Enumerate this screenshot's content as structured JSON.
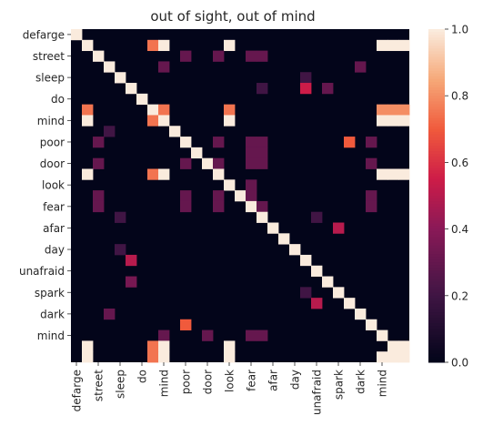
{
  "chart_data": {
    "type": "heatmap",
    "title": "out of sight, out of mind",
    "xlabel": "",
    "ylabel": "",
    "labels": [
      "defarge",
      "",
      "street",
      "",
      "sleep",
      "",
      "do",
      "",
      "mind",
      "",
      "poor",
      "",
      "door",
      "",
      "look",
      "",
      "fear",
      "",
      "afar",
      "",
      "day",
      "",
      "unafraid",
      "",
      "spark",
      "",
      "dark",
      "",
      "mind",
      "",
      ""
    ],
    "colorbar": {
      "min": 0.0,
      "max": 1.0,
      "ticks": [
        "0.0",
        "0.2",
        "0.4",
        "0.6",
        "0.8",
        "1.0"
      ]
    },
    "cells": [
      [
        0,
        0,
        1.0
      ],
      [
        1,
        1,
        1.0
      ],
      [
        1,
        7,
        0.75
      ],
      [
        1,
        8,
        1.0
      ],
      [
        1,
        14,
        1.0
      ],
      [
        1,
        28,
        1.0
      ],
      [
        1,
        29,
        1.0
      ],
      [
        1,
        30,
        1.0
      ],
      [
        2,
        2,
        1.0
      ],
      [
        2,
        10,
        0.3
      ],
      [
        2,
        13,
        0.3
      ],
      [
        2,
        16,
        0.3
      ],
      [
        2,
        17,
        0.3
      ],
      [
        3,
        3,
        1.0
      ],
      [
        3,
        8,
        0.3
      ],
      [
        3,
        26,
        0.3
      ],
      [
        4,
        4,
        1.0
      ],
      [
        4,
        21,
        0.2
      ],
      [
        5,
        5,
        1.0
      ],
      [
        5,
        17,
        0.2
      ],
      [
        5,
        21,
        0.55
      ],
      [
        5,
        23,
        0.3
      ],
      [
        6,
        6,
        1.0
      ],
      [
        7,
        1,
        0.75
      ],
      [
        7,
        7,
        1.0
      ],
      [
        7,
        8,
        0.75
      ],
      [
        7,
        14,
        0.75
      ],
      [
        7,
        28,
        0.8
      ],
      [
        7,
        29,
        0.8
      ],
      [
        7,
        30,
        0.8
      ],
      [
        8,
        1,
        1.0
      ],
      [
        8,
        7,
        0.75
      ],
      [
        8,
        8,
        1.0
      ],
      [
        8,
        14,
        1.0
      ],
      [
        8,
        28,
        1.0
      ],
      [
        8,
        29,
        1.0
      ],
      [
        8,
        30,
        1.0
      ],
      [
        9,
        9,
        1.0
      ],
      [
        9,
        3,
        0.2
      ],
      [
        10,
        10,
        1.0
      ],
      [
        10,
        2,
        0.3
      ],
      [
        10,
        13,
        0.3
      ],
      [
        10,
        16,
        0.3
      ],
      [
        10,
        17,
        0.3
      ],
      [
        10,
        25,
        0.7
      ],
      [
        10,
        27,
        0.3
      ],
      [
        11,
        11,
        1.0
      ],
      [
        11,
        16,
        0.3
      ],
      [
        11,
        17,
        0.3
      ],
      [
        12,
        12,
        1.0
      ],
      [
        12,
        2,
        0.3
      ],
      [
        12,
        10,
        0.3
      ],
      [
        12,
        13,
        0.3
      ],
      [
        12,
        16,
        0.3
      ],
      [
        12,
        17,
        0.3
      ],
      [
        12,
        27,
        0.3
      ],
      [
        13,
        1,
        1.0
      ],
      [
        13,
        7,
        0.75
      ],
      [
        13,
        8,
        1.0
      ],
      [
        13,
        13,
        1.0
      ],
      [
        13,
        28,
        1.0
      ],
      [
        13,
        29,
        1.0
      ],
      [
        13,
        30,
        1.0
      ],
      [
        14,
        14,
        1.0
      ],
      [
        14,
        16,
        0.3
      ],
      [
        15,
        15,
        1.0
      ],
      [
        15,
        2,
        0.3
      ],
      [
        15,
        10,
        0.3
      ],
      [
        15,
        13,
        0.3
      ],
      [
        15,
        16,
        0.3
      ],
      [
        15,
        27,
        0.3
      ],
      [
        16,
        16,
        1.0
      ],
      [
        16,
        2,
        0.3
      ],
      [
        16,
        10,
        0.3
      ],
      [
        16,
        13,
        0.3
      ],
      [
        16,
        17,
        0.3
      ],
      [
        16,
        27,
        0.3
      ],
      [
        17,
        17,
        1.0
      ],
      [
        17,
        4,
        0.2
      ],
      [
        17,
        22,
        0.2
      ],
      [
        18,
        18,
        1.0
      ],
      [
        18,
        24,
        0.5
      ],
      [
        19,
        19,
        1.0
      ],
      [
        20,
        20,
        1.0
      ],
      [
        20,
        4,
        0.2
      ],
      [
        21,
        21,
        1.0
      ],
      [
        21,
        5,
        0.5
      ],
      [
        22,
        22,
        1.0
      ],
      [
        23,
        23,
        1.0
      ],
      [
        23,
        5,
        0.35
      ],
      [
        24,
        24,
        1.0
      ],
      [
        24,
        21,
        0.2
      ],
      [
        25,
        25,
        1.0
      ],
      [
        25,
        22,
        0.5
      ],
      [
        26,
        26,
        1.0
      ],
      [
        26,
        3,
        0.3
      ],
      [
        27,
        27,
        1.0
      ],
      [
        27,
        10,
        0.7
      ],
      [
        28,
        28,
        1.0
      ],
      [
        28,
        8,
        0.3
      ],
      [
        28,
        12,
        0.3
      ],
      [
        28,
        16,
        0.3
      ],
      [
        28,
        17,
        0.3
      ],
      [
        29,
        1,
        1.0
      ],
      [
        29,
        7,
        0.75
      ],
      [
        29,
        8,
        1.0
      ],
      [
        29,
        14,
        1.0
      ],
      [
        29,
        29,
        1.0
      ],
      [
        29,
        30,
        1.0
      ],
      [
        30,
        1,
        1.0
      ],
      [
        30,
        7,
        0.75
      ],
      [
        30,
        8,
        1.0
      ],
      [
        30,
        14,
        1.0
      ],
      [
        30,
        28,
        1.0
      ],
      [
        30,
        29,
        1.0
      ],
      [
        30,
        30,
        1.0
      ]
    ]
  }
}
